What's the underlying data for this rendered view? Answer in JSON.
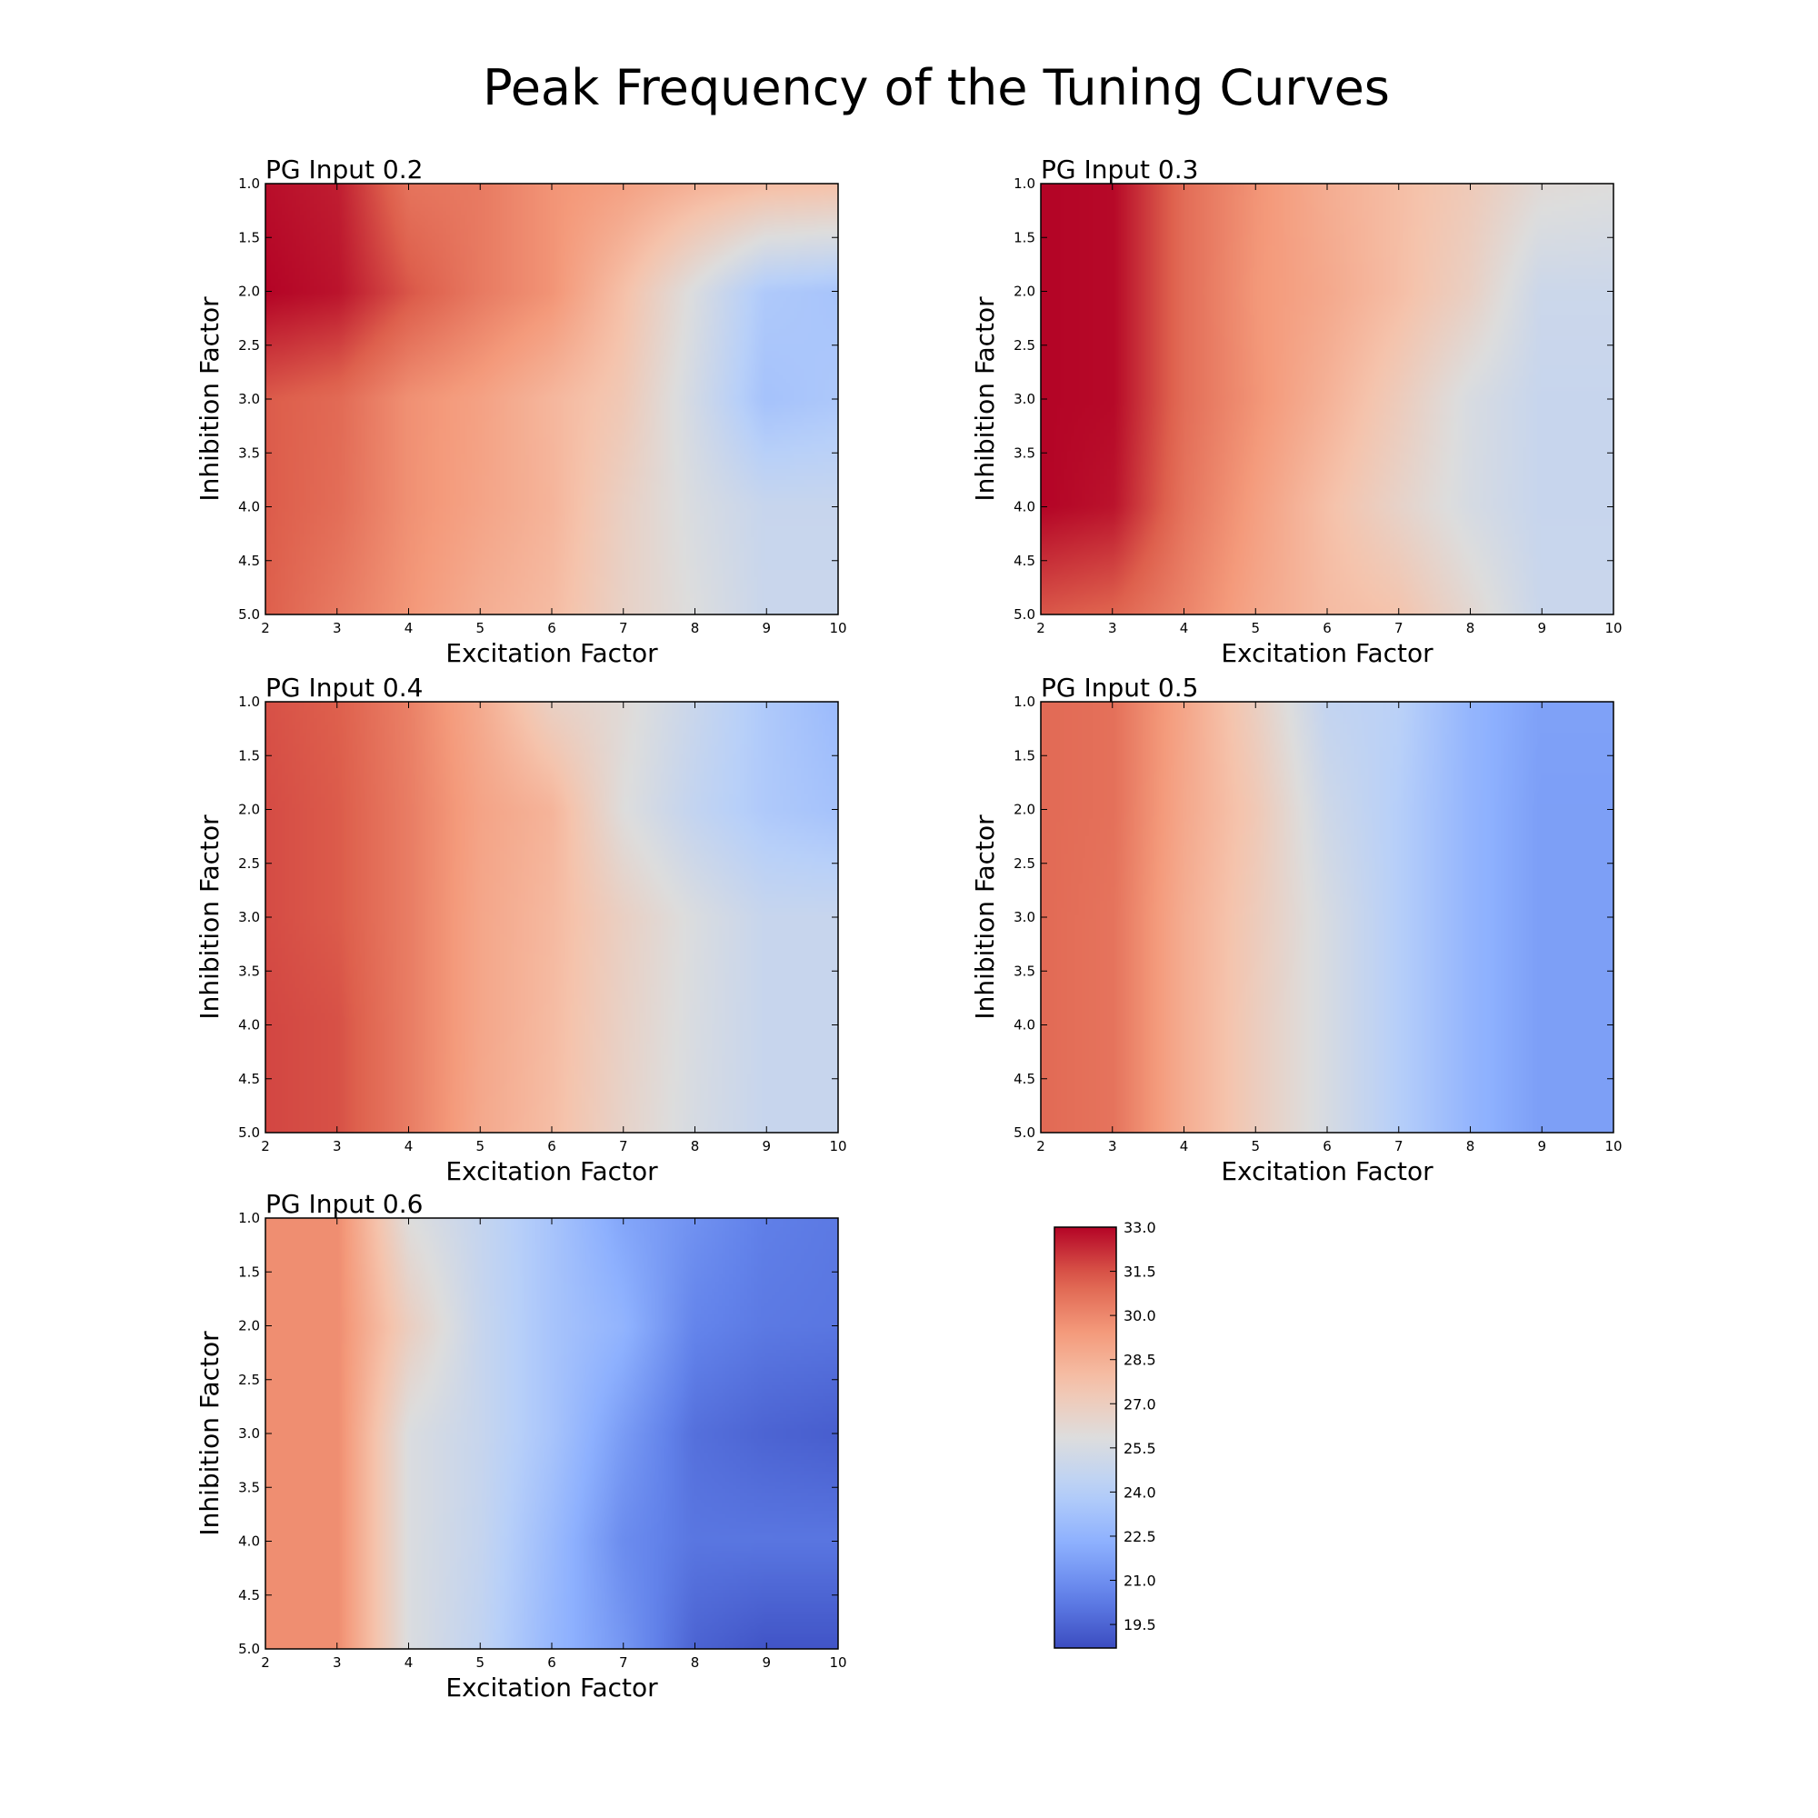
{
  "figure": {
    "title": "Peak Frequency of the Tuning Curves"
  },
  "colorbar": {
    "colormap": "coolwarm",
    "vmin": 18.7,
    "vmax": 33.0,
    "ticks": [
      "33.0",
      "31.5",
      "30.0",
      "28.5",
      "27.0",
      "25.5",
      "24.0",
      "22.5",
      "21.0",
      "19.5"
    ]
  },
  "chart_data": [
    {
      "type": "heatmap",
      "title": "PG Input 0.2",
      "xlabel": "Excitation Factor",
      "ylabel": "Inhibition Factor",
      "x": [
        2,
        3,
        4,
        5,
        6,
        7,
        8,
        9,
        10
      ],
      "y": [
        1,
        2,
        3,
        4,
        5
      ],
      "xlim": [
        2,
        10
      ],
      "ylim": [
        5.0,
        1.0
      ],
      "xticks": [
        "2",
        "3",
        "4",
        "5",
        "6",
        "7",
        "8",
        "9",
        "10"
      ],
      "yticks": [
        "1.0",
        "1.5",
        "2.0",
        "2.5",
        "3.0",
        "3.5",
        "4.0",
        "4.5",
        "5.0"
      ],
      "values": [
        [
          32.8,
          32.5,
          30.6,
          30.4,
          29.6,
          29.1,
          28.4,
          27.9,
          27.7
        ],
        [
          33.0,
          32.7,
          31.4,
          30.4,
          29.6,
          27.8,
          25.7,
          23.7,
          23.4
        ],
        [
          31.3,
          30.9,
          29.7,
          29.1,
          28.2,
          27.3,
          25.3,
          23.3,
          23.6
        ],
        [
          31.3,
          30.8,
          29.7,
          29.0,
          28.3,
          26.8,
          25.6,
          24.8,
          24.8
        ],
        [
          31.2,
          30.4,
          29.5,
          28.6,
          28.0,
          26.7,
          25.8,
          24.9,
          24.9
        ]
      ]
    },
    {
      "type": "heatmap",
      "title": "PG Input 0.3",
      "xlabel": "Excitation Factor",
      "ylabel": "Inhibition Factor",
      "x": [
        2,
        3,
        4,
        5,
        6,
        7,
        8,
        9,
        10
      ],
      "y": [
        1,
        2,
        3,
        4,
        5
      ],
      "xlim": [
        2,
        10
      ],
      "ylim": [
        5.0,
        1.0
      ],
      "xticks": [
        "2",
        "3",
        "4",
        "5",
        "6",
        "7",
        "8",
        "9",
        "10"
      ],
      "yticks": [
        "1.0",
        "1.5",
        "2.0",
        "2.5",
        "3.0",
        "3.5",
        "4.0",
        "4.5",
        "5.0"
      ],
      "values": [
        [
          33.0,
          32.9,
          30.8,
          29.6,
          28.6,
          27.9,
          27.2,
          26.1,
          25.9
        ],
        [
          33.0,
          32.9,
          30.8,
          29.5,
          28.8,
          27.9,
          26.8,
          25.0,
          25.0
        ],
        [
          33.0,
          32.9,
          30.8,
          29.6,
          28.4,
          27.1,
          25.6,
          24.8,
          24.8
        ],
        [
          33.0,
          32.7,
          30.6,
          29.2,
          27.8,
          26.6,
          25.5,
          24.8,
          24.8
        ],
        [
          31.4,
          31.1,
          30.1,
          28.9,
          28.0,
          27.6,
          26.3,
          24.9,
          24.9
        ]
      ]
    },
    {
      "type": "heatmap",
      "title": "PG Input 0.4",
      "xlabel": "Excitation Factor",
      "ylabel": "Inhibition Factor",
      "x": [
        2,
        3,
        4,
        5,
        6,
        7,
        8,
        9,
        10
      ],
      "y": [
        1,
        2,
        3,
        4,
        5
      ],
      "xlim": [
        2,
        10
      ],
      "ylim": [
        5.0,
        1.0
      ],
      "xticks": [
        "2",
        "3",
        "4",
        "5",
        "6",
        "7",
        "8",
        "9",
        "10"
      ],
      "yticks": [
        "1.0",
        "1.5",
        "2.0",
        "2.5",
        "3.0",
        "3.5",
        "4.0",
        "4.5",
        "5.0"
      ],
      "values": [
        [
          31.5,
          31.2,
          30.2,
          28.7,
          26.8,
          26.1,
          24.9,
          23.7,
          22.9
        ],
        [
          31.6,
          31.3,
          30.3,
          29.0,
          28.3,
          25.9,
          24.6,
          23.7,
          23.3
        ],
        [
          31.6,
          31.3,
          30.3,
          28.9,
          28.1,
          26.8,
          25.7,
          24.8,
          24.8
        ],
        [
          31.7,
          31.5,
          30.3,
          28.9,
          28.0,
          26.7,
          25.6,
          24.8,
          24.8
        ],
        [
          31.7,
          31.5,
          30.3,
          28.8,
          27.9,
          26.6,
          25.5,
          24.8,
          24.8
        ]
      ]
    },
    {
      "type": "heatmap",
      "title": "PG Input 0.5",
      "xlabel": "Excitation Factor",
      "ylabel": "Inhibition Factor",
      "x": [
        2,
        3,
        4,
        5,
        6,
        7,
        8,
        9,
        10
      ],
      "y": [
        1,
        2,
        3,
        4,
        5
      ],
      "xlim": [
        2,
        10
      ],
      "ylim": [
        5.0,
        1.0
      ],
      "xticks": [
        "2",
        "3",
        "4",
        "5",
        "6",
        "7",
        "8",
        "9",
        "10"
      ],
      "yticks": [
        "1.0",
        "1.5",
        "2.0",
        "2.5",
        "3.0",
        "3.5",
        "4.0",
        "4.5",
        "5.0"
      ],
      "values": [
        [
          30.9,
          30.7,
          28.9,
          26.9,
          24.6,
          24.2,
          22.6,
          21.7,
          21.7
        ],
        [
          30.9,
          30.7,
          28.8,
          27.3,
          25.1,
          24.0,
          22.6,
          21.6,
          21.6
        ],
        [
          30.9,
          30.6,
          28.6,
          27.1,
          25.5,
          24.0,
          22.6,
          21.6,
          21.6
        ],
        [
          30.9,
          30.6,
          28.6,
          27.0,
          25.5,
          24.0,
          22.6,
          21.6,
          21.6
        ],
        [
          30.9,
          30.6,
          28.6,
          27.0,
          25.5,
          24.0,
          22.6,
          21.6,
          21.6
        ]
      ]
    },
    {
      "type": "heatmap",
      "title": "PG Input 0.6",
      "xlabel": "Excitation Factor",
      "ylabel": "Inhibition Factor",
      "x": [
        2,
        3,
        4,
        5,
        6,
        7,
        8,
        9,
        10
      ],
      "y": [
        1,
        2,
        3,
        4,
        5
      ],
      "xlim": [
        2,
        10
      ],
      "ylim": [
        5.0,
        1.0
      ],
      "xticks": [
        "2",
        "3",
        "4",
        "5",
        "6",
        "7",
        "8",
        "9",
        "10"
      ],
      "yticks": [
        "1.0",
        "1.5",
        "2.0",
        "2.5",
        "3.0",
        "3.5",
        "4.0",
        "4.5",
        "5.0"
      ],
      "values": [
        [
          29.8,
          29.8,
          25.9,
          24.7,
          23.4,
          21.9,
          21.1,
          20.4,
          20.2
        ],
        [
          29.8,
          29.8,
          26.9,
          24.8,
          23.4,
          22.5,
          20.6,
          20.2,
          20.1
        ],
        [
          29.8,
          29.8,
          25.7,
          24.8,
          23.4,
          21.5,
          19.9,
          19.5,
          19.3
        ],
        [
          29.8,
          29.8,
          25.7,
          24.7,
          22.9,
          20.9,
          20.1,
          20.1,
          20.1
        ],
        [
          29.8,
          29.8,
          25.7,
          24.5,
          22.7,
          21.3,
          19.5,
          19.0,
          19.0
        ]
      ]
    }
  ]
}
